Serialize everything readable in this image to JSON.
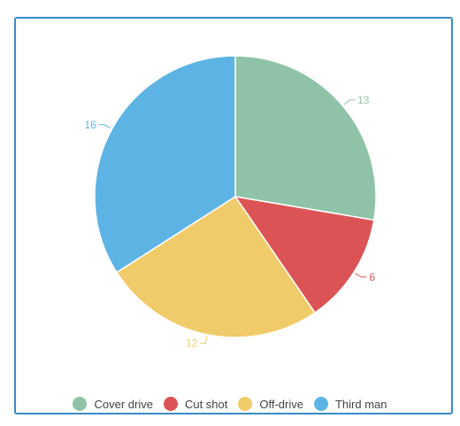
{
  "chart_data": {
    "type": "pie",
    "title": "",
    "categories": [
      "Cover drive",
      "Cut shot",
      "Off-drive",
      "Third man"
    ],
    "values": [
      13,
      6,
      12,
      16
    ],
    "colors": [
      "#8fc3a7",
      "#dc5356",
      "#f0cb69",
      "#5db4e4"
    ],
    "show_data_labels": true,
    "legend_position": "bottom-center"
  },
  "legend": {
    "items": [
      {
        "label": "Cover drive",
        "color": "#8fc3a7"
      },
      {
        "label": "Cut shot",
        "color": "#dc5356"
      },
      {
        "label": "Off-drive",
        "color": "#f0cb69"
      },
      {
        "label": "Third man",
        "color": "#5db4e4"
      }
    ]
  },
  "card": {
    "border_color": "#3a8bc7"
  }
}
